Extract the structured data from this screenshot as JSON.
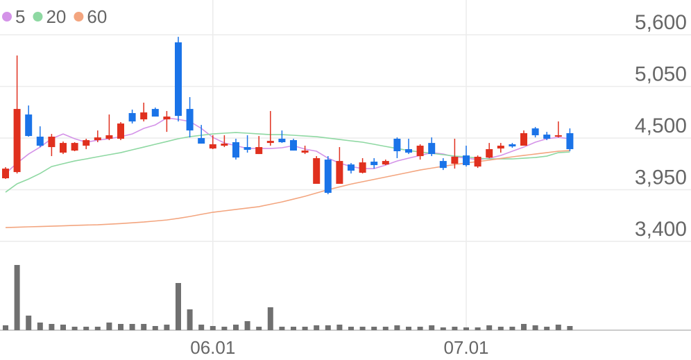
{
  "chart_data": {
    "type": "candlestick",
    "categories": [
      null,
      null,
      null,
      null,
      null,
      null,
      null,
      null,
      null,
      null,
      null,
      null,
      null,
      null,
      null,
      null,
      null,
      null,
      "06.01",
      null,
      null,
      null,
      null,
      null,
      null,
      null,
      null,
      null,
      null,
      null,
      null,
      null,
      null,
      null,
      null,
      null,
      null,
      null,
      null,
      null,
      "07.01",
      null,
      null,
      null,
      null,
      null,
      null,
      null,
      null,
      null
    ],
    "open": [
      4072,
      4138,
      4751,
      4515,
      4404,
      4345,
      4367,
      4419,
      4478,
      4493,
      4493,
      4766,
      4699,
      4810,
      4699,
      5519,
      4810,
      4500,
      4389,
      4419,
      4456,
      4404,
      4330,
      4448,
      4493,
      4478,
      4345,
      4013,
      4271,
      4013,
      4219,
      4131,
      4249,
      4219,
      4493,
      4382,
      4308,
      4448,
      4256,
      4227,
      4315,
      4197,
      4293,
      4389,
      4434,
      4419,
      4603,
      4537,
      4515,
      4552
    ],
    "high": [
      4190,
      5379,
      4847,
      4625,
      4544,
      4463,
      4456,
      4493,
      4581,
      4751,
      4670,
      4803,
      4877,
      4825,
      4788,
      5578,
      4936,
      4640,
      4530,
      4530,
      4493,
      4530,
      4522,
      4788,
      4581,
      4493,
      4419,
      4308,
      4308,
      4404,
      4234,
      4286,
      4286,
      4271,
      4507,
      4493,
      4434,
      4507,
      4286,
      4493,
      4419,
      4315,
      4448,
      4448,
      4448,
      4581,
      4618,
      4566,
      4677,
      4603
    ],
    "low": [
      4065,
      4123,
      4515,
      4404,
      4308,
      4330,
      4360,
      4382,
      4456,
      4478,
      4478,
      4655,
      4677,
      4729,
      4566,
      4677,
      4507,
      4441,
      4382,
      4404,
      4271,
      4345,
      4330,
      4419,
      4448,
      4367,
      4330,
      4013,
      3902,
      4013,
      4123,
      4123,
      4175,
      4212,
      4286,
      4330,
      4271,
      4308,
      4160,
      4175,
      4197,
      4182,
      4286,
      4345,
      4397,
      4419,
      4507,
      4478,
      4507,
      4360
    ],
    "close": [
      4175,
      4810,
      4522,
      4419,
      4515,
      4448,
      4448,
      4478,
      4507,
      4530,
      4655,
      4677,
      4773,
      4729,
      4729,
      4736,
      4581,
      4441,
      4434,
      4441,
      4293,
      4375,
      4404,
      4470,
      4456,
      4367,
      4367,
      4286,
      3917,
      4256,
      4153,
      4241,
      4212,
      4256,
      4360,
      4345,
      4419,
      4330,
      4182,
      4301,
      4212,
      4301,
      4382,
      4419,
      4411,
      4552,
      4530,
      4493,
      4530,
      4382
    ],
    "volume": [
      7,
      94,
      21,
      11,
      9,
      8,
      5,
      5,
      5,
      11,
      9,
      9,
      9,
      6,
      8,
      68,
      30,
      8,
      6,
      5,
      8,
      13,
      5,
      33,
      5,
      5,
      5,
      7,
      7,
      8,
      5,
      5,
      5,
      5,
      7,
      5,
      5,
      7,
      4,
      5,
      4,
      4,
      7,
      5,
      5,
      9,
      7,
      5,
      8,
      6
    ],
    "up_color": "#e0301e",
    "down_color": "#1a73e8",
    "volume_color": "#707070",
    "series": [
      {
        "name": "5",
        "color": "#d493e8",
        "values": [
          4123,
          4234,
          4330,
          4404,
          4493,
          4544,
          4493,
          4456,
          4478,
          4493,
          4515,
          4544,
          4603,
          4640,
          4714,
          4699,
          4677,
          4603,
          4507,
          4448,
          4419,
          4389,
          4389,
          4389,
          4397,
          4419,
          4382,
          4360,
          4286,
          4234,
          4197,
          4175,
          4175,
          4212,
          4256,
          4286,
          4315,
          4345,
          4330,
          4301,
          4286,
          4271,
          4286,
          4315,
          4360,
          4404,
          4456,
          4493,
          4507,
          4493
        ]
      },
      {
        "name": "20",
        "color": "#8ed8a2",
        "values": [
          3924,
          4013,
          4064,
          4123,
          4197,
          4227,
          4256,
          4278,
          4301,
          4323,
          4345,
          4375,
          4404,
          4434,
          4463,
          4493,
          4515,
          4530,
          4544,
          4552,
          4559,
          4552,
          4544,
          4537,
          4537,
          4530,
          4522,
          4515,
          4500,
          4485,
          4470,
          4456,
          4434,
          4411,
          4389,
          4367,
          4352,
          4338,
          4323,
          4308,
          4301,
          4286,
          4278,
          4278,
          4278,
          4286,
          4293,
          4308,
          4345,
          4352
        ]
      },
      {
        "name": "60",
        "color": "#f3a57f",
        "values": [
          3547,
          3551,
          3555,
          3558,
          3562,
          3566,
          3570,
          3574,
          3577,
          3583,
          3590,
          3598,
          3606,
          3617,
          3628,
          3645,
          3665,
          3688,
          3710,
          3725,
          3740,
          3755,
          3770,
          3795,
          3820,
          3850,
          3880,
          3915,
          3950,
          3980,
          4010,
          4035,
          4060,
          4085,
          4110,
          4135,
          4160,
          4180,
          4200,
          4218,
          4235,
          4250,
          4265,
          4283,
          4300,
          4315,
          4330,
          4345,
          4360,
          4367
        ]
      }
    ],
    "ylim": [
      3400,
      5970
    ],
    "yticks": [
      {
        "value": 3400,
        "label": "3,400"
      },
      {
        "value": 3950,
        "label": "3,950"
      },
      {
        "value": 4500,
        "label": "4,500"
      },
      {
        "value": 5050,
        "label": "5,050"
      },
      {
        "value": 5600,
        "label": "5,600"
      }
    ],
    "volume_ylim": [
      0,
      110
    ],
    "grid": true
  }
}
